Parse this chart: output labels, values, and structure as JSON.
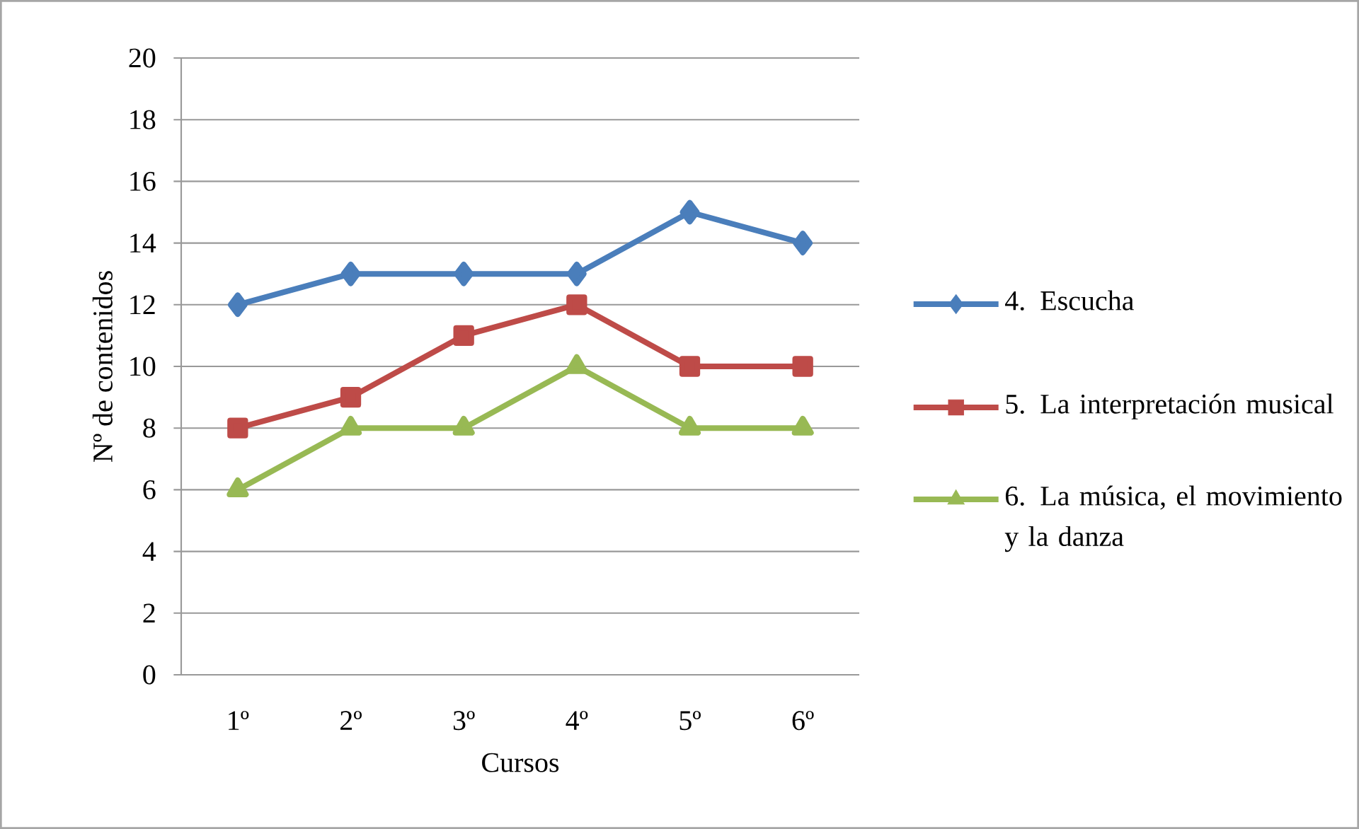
{
  "chart_data": {
    "type": "line",
    "xlabel": "Cursos",
    "ylabel": "Nº de contenidos",
    "categories": [
      "1º",
      "2º",
      "3º",
      "4º",
      "5º",
      "6º"
    ],
    "series": [
      {
        "name": "4. Escucha",
        "color": "#4a7ebb",
        "marker": "diamond",
        "values": [
          12,
          13,
          13,
          13,
          15,
          14
        ]
      },
      {
        "name": "5. La interpretación musical",
        "color": "#be4b48",
        "marker": "square",
        "values": [
          8,
          9,
          11,
          12,
          10,
          10
        ]
      },
      {
        "name": "6. La música, el movimiento y la danza",
        "color": "#98b954",
        "marker": "triangle",
        "values": [
          6,
          8,
          8,
          10,
          8,
          8
        ]
      }
    ],
    "ylim": [
      0,
      20
    ],
    "yticks": [
      0,
      2,
      4,
      6,
      8,
      10,
      12,
      14,
      16,
      18,
      20
    ],
    "grid": "y",
    "legend": "right"
  }
}
